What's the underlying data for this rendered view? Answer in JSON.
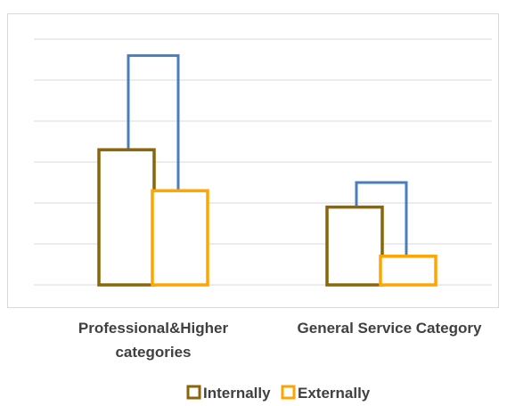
{
  "chart_data": {
    "type": "bar",
    "categories": [
      "Professional&Higher categories",
      "General Service Category"
    ],
    "category_label_lines": [
      [
        "Professional&Higher",
        "categories"
      ],
      [
        "General Service Category"
      ]
    ],
    "ylim": [
      0,
      6
    ],
    "grid": true,
    "legend_position": "bottom",
    "total_outline_color": "#4a7ebb",
    "series": [
      {
        "name": "Internally",
        "values": [
          3.3,
          1.9
        ],
        "color": "#8B6508"
      },
      {
        "name": "Externally",
        "values": [
          2.3,
          0.7
        ],
        "color": "#FFA500"
      }
    ],
    "totals": [
      5.6,
      2.5
    ]
  }
}
